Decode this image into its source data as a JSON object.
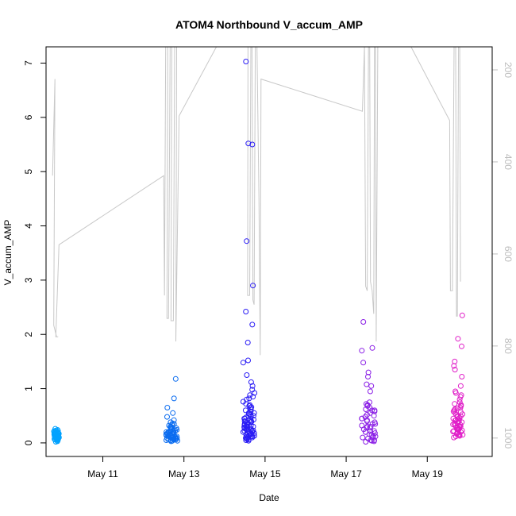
{
  "chart_data": {
    "type": "scatter",
    "title": "ATOM4 Northbound V_accum_AMP",
    "xlabel": "Date",
    "ylabel": "V_accum_AMP",
    "xlim": [
      9.6,
      20.6
    ],
    "ylim": [
      -0.25,
      7.3
    ],
    "x_ticks": [
      11,
      13,
      15,
      17,
      19
    ],
    "x_tick_labels": [
      "May 11",
      "May 13",
      "May 15",
      "May 17",
      "May 19"
    ],
    "y_ticks": [
      0,
      1,
      2,
      3,
      4,
      5,
      6,
      7
    ],
    "y_tick_labels": [
      "0",
      "1",
      "2",
      "3",
      "4",
      "5",
      "6",
      "7"
    ],
    "y2_lim": [
      1040,
      150
    ],
    "y2_ticks": [
      200,
      400,
      600,
      800,
      1000
    ],
    "y2_tick_labels": [
      "200",
      "400",
      "600",
      "800",
      "1000"
    ],
    "y2_color": "#bdbdbd",
    "grid": false,
    "point_style": "open-circle",
    "groups": [
      {
        "day": 9.85,
        "color": "#00a2ff",
        "spread": 0.14,
        "values": [
          0.04,
          0.06,
          0.08,
          0.1,
          0.12,
          0.14,
          0.16,
          0.18,
          0.2,
          0.22,
          0.24,
          0.26,
          0.05,
          0.07,
          0.09,
          0.11,
          0.13,
          0.15,
          0.17,
          0.19,
          0.21,
          0.23,
          0.03,
          0.1,
          0.15,
          0.2,
          0.12,
          0.08,
          0.18,
          0.14,
          0.06,
          0.22,
          0.16,
          0.11,
          0.09,
          0.13,
          0.17,
          0.19,
          0.07,
          0.21,
          0.02,
          0.12,
          0.15,
          0.18,
          0.1
        ]
      },
      {
        "day": 12.7,
        "color": "#0a6cf0",
        "spread": 0.28,
        "values": [
          1.18,
          0.82,
          0.65,
          0.55,
          0.48,
          0.42,
          0.38,
          0.35,
          0.32,
          0.3,
          0.28,
          0.26,
          0.24,
          0.22,
          0.2,
          0.19,
          0.18,
          0.17,
          0.16,
          0.15,
          0.14,
          0.13,
          0.12,
          0.11,
          0.1,
          0.09,
          0.08,
          0.07,
          0.06,
          0.05,
          0.04,
          0.03,
          0.25,
          0.21,
          0.16,
          0.12,
          0.09,
          0.06,
          0.33,
          0.27,
          0.19,
          0.14,
          0.1,
          0.07,
          0.05,
          0.23,
          0.18,
          0.13,
          0.08,
          0.04,
          0.29,
          0.2,
          0.15,
          0.11,
          0.06,
          0.36,
          0.24,
          0.17,
          0.12,
          0.09
        ]
      },
      {
        "day": 14.6,
        "color": "#2a1cf5",
        "spread": 0.28,
        "values": [
          7.03,
          5.52,
          5.5,
          3.72,
          2.9,
          2.42,
          2.18,
          1.85,
          1.52,
          1.48,
          1.25,
          1.12,
          1.05,
          0.98,
          0.92,
          0.88,
          0.85,
          0.8,
          0.76,
          0.72,
          0.68,
          0.65,
          0.62,
          0.58,
          0.55,
          0.52,
          0.5,
          0.48,
          0.45,
          0.42,
          0.4,
          0.38,
          0.36,
          0.34,
          0.32,
          0.3,
          0.28,
          0.26,
          0.24,
          0.22,
          0.2,
          0.18,
          0.16,
          0.14,
          0.12,
          0.1,
          0.08,
          0.06,
          0.04,
          0.35,
          0.3,
          0.25,
          0.2,
          0.15,
          0.1,
          0.45,
          0.4,
          0.33,
          0.27,
          0.22,
          0.17,
          0.12,
          0.07,
          0.6,
          0.5,
          0.43,
          0.37,
          0.29,
          0.23,
          0.19,
          0.13,
          0.09,
          0.05,
          0.7,
          0.55,
          0.47,
          0.39,
          0.31,
          0.21,
          0.11,
          0.82,
          0.66,
          0.53,
          0.41,
          0.26,
          0.14
        ]
      },
      {
        "day": 17.55,
        "color": "#8a1ee6",
        "spread": 0.35,
        "values": [
          2.23,
          1.75,
          1.7,
          1.48,
          1.3,
          1.22,
          1.08,
          1.05,
          0.95,
          0.75,
          0.72,
          0.7,
          0.68,
          0.65,
          0.62,
          0.6,
          0.58,
          0.55,
          0.52,
          0.5,
          0.48,
          0.45,
          0.42,
          0.4,
          0.38,
          0.35,
          0.32,
          0.3,
          0.28,
          0.25,
          0.22,
          0.2,
          0.18,
          0.15,
          0.12,
          0.1,
          0.08,
          0.05,
          0.03,
          0.02,
          0.35,
          0.28,
          0.22,
          0.16,
          0.1,
          0.05,
          0.6,
          0.45,
          0.3,
          0.2,
          0.12,
          0.04
        ]
      },
      {
        "day": 19.75,
        "color": "#e01ec8",
        "spread": 0.25,
        "values": [
          2.35,
          1.92,
          1.78,
          1.5,
          1.42,
          1.35,
          1.22,
          1.05,
          0.95,
          0.92,
          0.88,
          0.85,
          0.8,
          0.75,
          0.72,
          0.7,
          0.68,
          0.65,
          0.62,
          0.6,
          0.58,
          0.55,
          0.52,
          0.5,
          0.48,
          0.45,
          0.42,
          0.4,
          0.38,
          0.36,
          0.34,
          0.32,
          0.3,
          0.28,
          0.26,
          0.24,
          0.22,
          0.2,
          0.18,
          0.16,
          0.14,
          0.12,
          0.1,
          0.44,
          0.39,
          0.33,
          0.27,
          0.21,
          0.15,
          0.57,
          0.49,
          0.41,
          0.35,
          0.29,
          0.23,
          0.17,
          0.64,
          0.53,
          0.46,
          0.37,
          0.31,
          0.25,
          0.19,
          0.13
        ]
      }
    ],
    "secondary_line": {
      "color": "#c8c8c8",
      "points": [
        [
          9.76,
          430
        ],
        [
          9.82,
          220
        ],
        [
          9.79,
          755
        ],
        [
          9.86,
          780
        ],
        [
          9.9,
          780
        ],
        [
          9.84,
          780
        ],
        [
          9.92,
          580
        ],
        [
          12.5,
          430
        ],
        [
          12.52,
          690
        ],
        [
          12.55,
          150
        ],
        [
          12.6,
          150
        ],
        [
          12.58,
          740
        ],
        [
          12.62,
          740
        ],
        [
          12.66,
          150
        ],
        [
          12.7,
          150
        ],
        [
          12.68,
          745
        ],
        [
          12.74,
          745
        ],
        [
          12.77,
          150
        ],
        [
          12.82,
          150
        ],
        [
          12.8,
          790
        ],
        [
          12.88,
          300
        ],
        [
          13.8,
          150
        ],
        [
          14.58,
          150
        ],
        [
          14.57,
          690
        ],
        [
          14.62,
          690
        ],
        [
          14.65,
          150
        ],
        [
          14.68,
          150
        ],
        [
          14.7,
          700
        ],
        [
          14.73,
          710
        ],
        [
          14.76,
          150
        ],
        [
          14.8,
          150
        ],
        [
          14.85,
          480
        ],
        [
          14.88,
          820
        ],
        [
          14.9,
          220
        ],
        [
          17.4,
          290
        ],
        [
          17.45,
          150
        ],
        [
          17.48,
          670
        ],
        [
          17.52,
          680
        ],
        [
          17.55,
          150
        ],
        [
          17.58,
          150
        ],
        [
          17.6,
          660
        ],
        [
          17.64,
          680
        ],
        [
          17.68,
          730
        ],
        [
          17.7,
          150
        ],
        [
          17.72,
          150
        ],
        [
          17.74,
          790
        ],
        [
          17.78,
          150
        ],
        [
          18.1,
          150
        ],
        [
          18.6,
          150
        ],
        [
          19.55,
          310
        ],
        [
          19.57,
          680
        ],
        [
          19.62,
          680
        ],
        [
          19.66,
          150
        ],
        [
          19.7,
          150
        ],
        [
          19.72,
          735
        ],
        [
          19.74,
          735
        ],
        [
          19.77,
          150
        ],
        [
          19.8,
          150
        ],
        [
          19.82,
          660
        ]
      ]
    }
  }
}
